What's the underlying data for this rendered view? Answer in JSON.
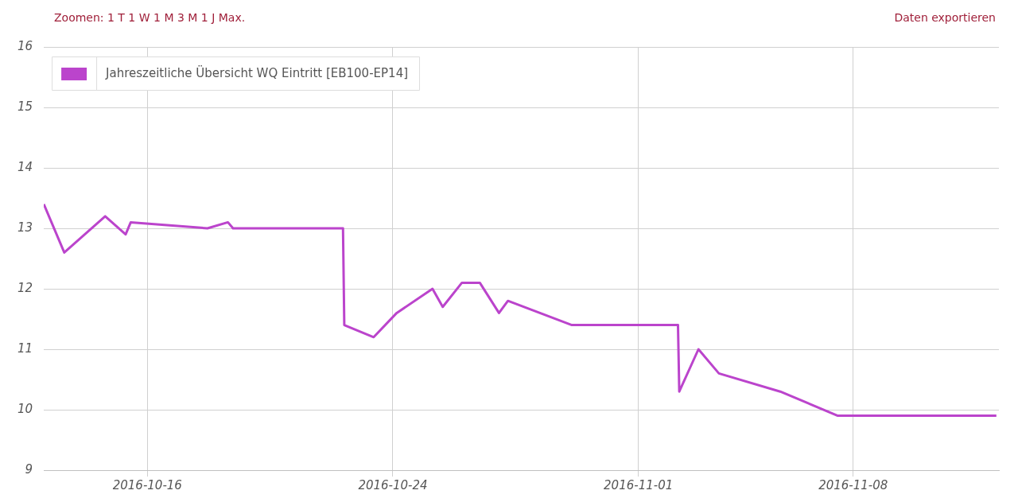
{
  "chart_data": {
    "type": "line",
    "annotations": [
      "Zoomen: 1 T 1 W 1 M 3 M 1 J Max.",
      "Daten exportieren"
    ],
    "x": [
      "2016-10-12T15:00",
      "2016-10-13T07:00",
      "2016-10-14T15:00",
      "2016-10-15T07:00",
      "2016-10-15T11:00",
      "2016-10-17T23:00",
      "2016-10-18T15:00",
      "2016-10-18T19:00",
      "2016-10-22T09:00",
      "2016-10-22T10:00",
      "2016-10-23T09:00",
      "2016-10-24T03:00",
      "2016-10-25T07:00",
      "2016-10-25T15:00",
      "2016-10-26T06:00",
      "2016-10-26T20:00",
      "2016-10-27T11:00",
      "2016-10-27T18:00",
      "2016-10-29T20:00",
      "2016-11-02T07:00",
      "2016-11-02T08:00",
      "2016-11-02T23:00",
      "2016-11-03T15:00",
      "2016-11-05T15:00",
      "2016-11-07T12:00",
      "2016-11-12T16:00"
    ],
    "series": [
      {
        "name": "Jahreszeitliche Übersicht WQ Eintritt [EB100-EP14]",
        "color": "#bb44cc",
        "values": [
          13.4,
          12.6,
          13.2,
          12.9,
          13.1,
          13.0,
          13.1,
          13.0,
          13.0,
          11.4,
          11.2,
          11.6,
          12.0,
          11.7,
          12.1,
          12.1,
          11.6,
          11.8,
          11.4,
          11.4,
          10.3,
          11.0,
          10.6,
          10.3,
          9.9,
          9.9
        ]
      }
    ],
    "xlim": [
      "2016-10-12T15:00",
      "2016-11-12T18:00"
    ],
    "xticks": [
      "2016-10-16",
      "2016-10-24",
      "2016-11-01",
      "2016-11-08"
    ],
    "ylim": [
      9,
      16
    ],
    "yticks": [
      9,
      10,
      11,
      12,
      13,
      14,
      15,
      16
    ],
    "grid": true,
    "legend": "top left",
    "marker": "none",
    "line_style": "solid"
  }
}
